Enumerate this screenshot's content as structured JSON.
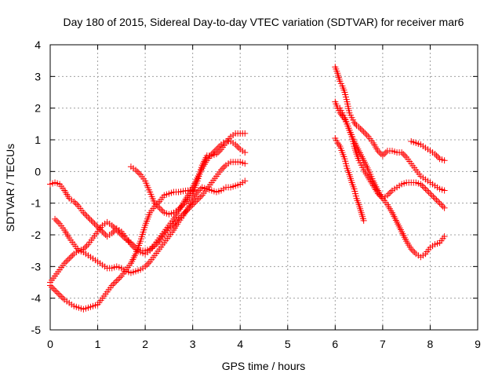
{
  "chart_data": {
    "type": "scatter",
    "title": "Day 180 of 2015, Sidereal Day-to-day VTEC variation (SDTVAR) for receiver mar6",
    "xlabel": "GPS time / hours",
    "ylabel": "SDTVAR / TECUs",
    "xlim": [
      0,
      9
    ],
    "ylim": [
      -5,
      4
    ],
    "xticks": [
      0,
      1,
      2,
      3,
      4,
      5,
      6,
      7,
      8,
      9
    ],
    "yticks": [
      -5,
      -4,
      -3,
      -2,
      -1,
      0,
      1,
      2,
      3,
      4
    ],
    "grid": true,
    "marker": "+",
    "color": "#ff0000",
    "series": [
      {
        "name": "arc1",
        "points": [
          [
            0,
            -0.4
          ],
          [
            0.1,
            -0.35
          ],
          [
            0.2,
            -0.4
          ],
          [
            0.3,
            -0.6
          ],
          [
            0.4,
            -0.85
          ],
          [
            0.5,
            -0.95
          ],
          [
            0.6,
            -1.1
          ],
          [
            0.7,
            -1.3
          ],
          [
            0.8,
            -1.45
          ],
          [
            0.9,
            -1.6
          ],
          [
            1.0,
            -1.75
          ],
          [
            1.1,
            -1.9
          ],
          [
            1.2,
            -2.05
          ],
          [
            1.3,
            -1.95
          ],
          [
            1.4,
            -1.8
          ],
          [
            1.5,
            -1.9
          ],
          [
            1.6,
            -2.1
          ],
          [
            1.7,
            -2.3
          ],
          [
            1.8,
            -2.45
          ],
          [
            1.9,
            -2.55
          ],
          [
            2.0,
            -2.6
          ],
          [
            2.1,
            -2.5
          ],
          [
            2.2,
            -2.3
          ],
          [
            2.3,
            -2.1
          ],
          [
            2.4,
            -1.9
          ],
          [
            2.5,
            -1.7
          ],
          [
            2.6,
            -1.5
          ],
          [
            2.7,
            -1.25
          ],
          [
            2.8,
            -1.0
          ],
          [
            2.9,
            -0.75
          ],
          [
            3.0,
            -0.5
          ],
          [
            3.1,
            -0.2
          ],
          [
            3.2,
            0.1
          ],
          [
            3.3,
            0.35
          ],
          [
            3.4,
            0.55
          ],
          [
            3.5,
            0.7
          ],
          [
            3.6,
            0.85
          ],
          [
            3.7,
            0.95
          ],
          [
            3.8,
            0.95
          ],
          [
            3.9,
            0.85
          ],
          [
            4.0,
            0.7
          ],
          [
            4.1,
            0.6
          ]
        ]
      },
      {
        "name": "arc2",
        "points": [
          [
            0,
            -3.5
          ],
          [
            0.1,
            -3.3
          ],
          [
            0.2,
            -3.1
          ],
          [
            0.3,
            -2.9
          ],
          [
            0.4,
            -2.75
          ],
          [
            0.5,
            -2.6
          ],
          [
            0.6,
            -2.5
          ],
          [
            0.7,
            -2.45
          ],
          [
            0.8,
            -2.3
          ],
          [
            0.9,
            -2.1
          ],
          [
            1.0,
            -1.9
          ],
          [
            1.1,
            -1.7
          ],
          [
            1.2,
            -1.6
          ],
          [
            1.3,
            -1.7
          ],
          [
            1.4,
            -1.85
          ],
          [
            1.5,
            -2.0
          ],
          [
            1.6,
            -2.15
          ],
          [
            1.7,
            -2.25
          ],
          [
            1.8,
            -2.4
          ],
          [
            1.9,
            -2.5
          ],
          [
            2.0,
            -2.5
          ],
          [
            2.1,
            -2.45
          ],
          [
            2.2,
            -2.35
          ],
          [
            2.3,
            -2.2
          ],
          [
            2.4,
            -2.0
          ],
          [
            2.5,
            -1.8
          ],
          [
            2.6,
            -1.65
          ],
          [
            2.7,
            -1.5
          ],
          [
            2.8,
            -1.35
          ],
          [
            2.9,
            -1.2
          ],
          [
            3.0,
            -1.05
          ],
          [
            3.1,
            -0.9
          ],
          [
            3.2,
            -0.75
          ],
          [
            3.3,
            -0.55
          ],
          [
            3.4,
            -0.35
          ],
          [
            3.5,
            -0.15
          ],
          [
            3.6,
            0.05
          ],
          [
            3.7,
            0.2
          ],
          [
            3.8,
            0.3
          ],
          [
            3.9,
            0.3
          ],
          [
            4.0,
            0.3
          ],
          [
            4.1,
            0.25
          ]
        ]
      },
      {
        "name": "arc3",
        "points": [
          [
            0,
            -3.6
          ],
          [
            0.1,
            -3.75
          ],
          [
            0.2,
            -3.9
          ],
          [
            0.3,
            -4.05
          ],
          [
            0.4,
            -4.15
          ],
          [
            0.5,
            -4.25
          ],
          [
            0.6,
            -4.3
          ],
          [
            0.7,
            -4.35
          ],
          [
            0.8,
            -4.3
          ],
          [
            0.9,
            -4.25
          ],
          [
            1.0,
            -4.2
          ],
          [
            1.1,
            -4.0
          ],
          [
            1.2,
            -3.8
          ],
          [
            1.3,
            -3.6
          ],
          [
            1.4,
            -3.45
          ],
          [
            1.5,
            -3.3
          ],
          [
            1.6,
            -3.1
          ],
          [
            1.7,
            -2.9
          ],
          [
            1.8,
            -2.6
          ],
          [
            1.9,
            -2.2
          ],
          [
            2.0,
            -1.7
          ],
          [
            2.1,
            -1.3
          ],
          [
            2.2,
            -1.1
          ],
          [
            2.3,
            -0.95
          ],
          [
            2.4,
            -0.75
          ],
          [
            2.5,
            -0.7
          ],
          [
            2.6,
            -0.65
          ],
          [
            2.7,
            -0.65
          ],
          [
            2.8,
            -0.62
          ],
          [
            2.9,
            -0.6
          ],
          [
            3.0,
            -0.6
          ]
        ]
      },
      {
        "name": "arc4",
        "points": [
          [
            0.1,
            -1.5
          ],
          [
            0.2,
            -1.65
          ],
          [
            0.3,
            -1.85
          ],
          [
            0.4,
            -2.1
          ],
          [
            0.5,
            -2.3
          ],
          [
            0.6,
            -2.5
          ],
          [
            0.7,
            -2.55
          ],
          [
            0.8,
            -2.65
          ],
          [
            0.9,
            -2.75
          ],
          [
            1.0,
            -2.85
          ],
          [
            1.1,
            -2.95
          ],
          [
            1.2,
            -3.05
          ],
          [
            1.3,
            -3.05
          ],
          [
            1.4,
            -3.0
          ],
          [
            1.5,
            -3.05
          ],
          [
            1.6,
            -3.15
          ],
          [
            1.7,
            -3.2
          ],
          [
            1.8,
            -3.15
          ],
          [
            1.9,
            -3.1
          ],
          [
            2.0,
            -3.0
          ],
          [
            2.1,
            -2.85
          ],
          [
            2.2,
            -2.65
          ],
          [
            2.3,
            -2.45
          ],
          [
            2.4,
            -2.25
          ],
          [
            2.5,
            -2.05
          ],
          [
            2.6,
            -1.85
          ],
          [
            2.7,
            -1.6
          ],
          [
            2.8,
            -1.4
          ],
          [
            2.9,
            -1.15
          ],
          [
            3.0,
            -0.9
          ],
          [
            3.1,
            -0.65
          ],
          [
            3.2,
            -0.5
          ],
          [
            3.3,
            -0.55
          ],
          [
            3.4,
            -0.6
          ],
          [
            3.5,
            -0.65
          ],
          [
            3.6,
            -0.6
          ],
          [
            3.7,
            -0.5
          ],
          [
            3.8,
            -0.5
          ],
          [
            3.9,
            -0.45
          ],
          [
            4.0,
            -0.4
          ],
          [
            4.1,
            -0.3
          ]
        ]
      },
      {
        "name": "arc5",
        "points": [
          [
            1.7,
            0.15
          ],
          [
            1.8,
            0.05
          ],
          [
            1.9,
            -0.1
          ],
          [
            2.0,
            -0.3
          ],
          [
            2.1,
            -0.65
          ],
          [
            2.2,
            -1.0
          ],
          [
            2.3,
            -1.15
          ],
          [
            2.4,
            -1.3
          ],
          [
            2.5,
            -1.35
          ],
          [
            2.6,
            -1.3
          ],
          [
            2.7,
            -1.2
          ],
          [
            2.8,
            -1.05
          ],
          [
            2.9,
            -0.9
          ],
          [
            3.0,
            -0.7
          ],
          [
            3.1,
            -0.3
          ],
          [
            3.2,
            0.2
          ],
          [
            3.3,
            0.5
          ],
          [
            3.4,
            0.5
          ],
          [
            3.5,
            0.55
          ],
          [
            3.6,
            0.7
          ],
          [
            3.7,
            0.9
          ],
          [
            3.8,
            1.1
          ],
          [
            3.9,
            1.2
          ],
          [
            4.0,
            1.2
          ],
          [
            4.1,
            1.2
          ]
        ]
      },
      {
        "name": "arc6",
        "points": [
          [
            6.0,
            3.3
          ],
          [
            6.05,
            3.1
          ],
          [
            6.1,
            2.85
          ],
          [
            6.15,
            2.7
          ],
          [
            6.2,
            2.5
          ],
          [
            6.25,
            2.2
          ],
          [
            6.3,
            1.85
          ],
          [
            6.35,
            1.7
          ],
          [
            6.4,
            1.55
          ],
          [
            6.45,
            1.45
          ],
          [
            6.5,
            1.4
          ],
          [
            6.6,
            1.25
          ],
          [
            6.7,
            1.1
          ],
          [
            6.8,
            0.9
          ],
          [
            6.9,
            0.65
          ],
          [
            7.0,
            0.5
          ],
          [
            7.1,
            0.65
          ],
          [
            7.2,
            0.65
          ],
          [
            7.3,
            0.6
          ],
          [
            7.4,
            0.6
          ],
          [
            7.5,
            0.45
          ],
          [
            7.6,
            0.25
          ],
          [
            7.7,
            0.05
          ],
          [
            7.8,
            -0.15
          ],
          [
            7.9,
            -0.25
          ],
          [
            8.0,
            -0.35
          ],
          [
            8.1,
            -0.45
          ],
          [
            8.2,
            -0.55
          ],
          [
            8.3,
            -0.6
          ]
        ]
      },
      {
        "name": "arc7",
        "points": [
          [
            6.0,
            2.2
          ],
          [
            6.05,
            2.0
          ],
          [
            6.1,
            1.85
          ],
          [
            6.15,
            1.75
          ],
          [
            6.2,
            1.65
          ],
          [
            6.25,
            1.5
          ],
          [
            6.3,
            1.3
          ],
          [
            6.35,
            1.1
          ],
          [
            6.4,
            0.8
          ],
          [
            6.45,
            0.55
          ],
          [
            6.5,
            0.35
          ],
          [
            6.55,
            0.2
          ],
          [
            6.6,
            0.05
          ],
          [
            6.7,
            -0.2
          ],
          [
            6.8,
            -0.45
          ],
          [
            6.9,
            -0.7
          ],
          [
            7.0,
            -0.85
          ],
          [
            7.1,
            -0.75
          ],
          [
            7.2,
            -0.6
          ],
          [
            7.3,
            -0.5
          ],
          [
            7.4,
            -0.4
          ],
          [
            7.5,
            -0.35
          ],
          [
            7.6,
            -0.35
          ],
          [
            7.7,
            -0.35
          ],
          [
            7.8,
            -0.4
          ],
          [
            7.9,
            -0.55
          ],
          [
            8.0,
            -0.7
          ],
          [
            8.1,
            -0.85
          ],
          [
            8.2,
            -1.0
          ],
          [
            8.3,
            -1.15
          ]
        ]
      },
      {
        "name": "arc8",
        "points": [
          [
            6.1,
            2.0
          ],
          [
            6.15,
            1.85
          ],
          [
            6.2,
            1.7
          ],
          [
            6.3,
            1.3
          ],
          [
            6.4,
            0.95
          ],
          [
            6.5,
            0.65
          ],
          [
            6.6,
            0.35
          ],
          [
            6.7,
            0.05
          ],
          [
            6.8,
            -0.3
          ],
          [
            6.9,
            -0.6
          ],
          [
            7.0,
            -0.85
          ],
          [
            7.1,
            -1.05
          ],
          [
            7.2,
            -1.3
          ],
          [
            7.3,
            -1.6
          ],
          [
            7.4,
            -1.9
          ],
          [
            7.5,
            -2.2
          ],
          [
            7.6,
            -2.45
          ],
          [
            7.7,
            -2.6
          ],
          [
            7.8,
            -2.7
          ],
          [
            7.9,
            -2.6
          ],
          [
            8.0,
            -2.4
          ],
          [
            8.1,
            -2.3
          ],
          [
            8.2,
            -2.25
          ],
          [
            8.3,
            -2.05
          ]
        ]
      },
      {
        "name": "arc9",
        "points": [
          [
            6.0,
            1.05
          ],
          [
            6.05,
            0.9
          ],
          [
            6.1,
            0.8
          ],
          [
            6.15,
            0.6
          ],
          [
            6.2,
            0.4
          ],
          [
            6.25,
            0.1
          ],
          [
            6.3,
            -0.1
          ],
          [
            6.35,
            -0.35
          ],
          [
            6.4,
            -0.55
          ],
          [
            6.45,
            -0.85
          ],
          [
            6.5,
            -1.05
          ],
          [
            6.55,
            -1.3
          ],
          [
            6.6,
            -1.55
          ]
        ]
      },
      {
        "name": "arc10",
        "points": [
          [
            7.6,
            0.95
          ],
          [
            7.7,
            0.9
          ],
          [
            7.8,
            0.85
          ],
          [
            7.9,
            0.75
          ],
          [
            8.0,
            0.65
          ],
          [
            8.1,
            0.55
          ],
          [
            8.2,
            0.4
          ],
          [
            8.3,
            0.35
          ]
        ]
      }
    ]
  }
}
